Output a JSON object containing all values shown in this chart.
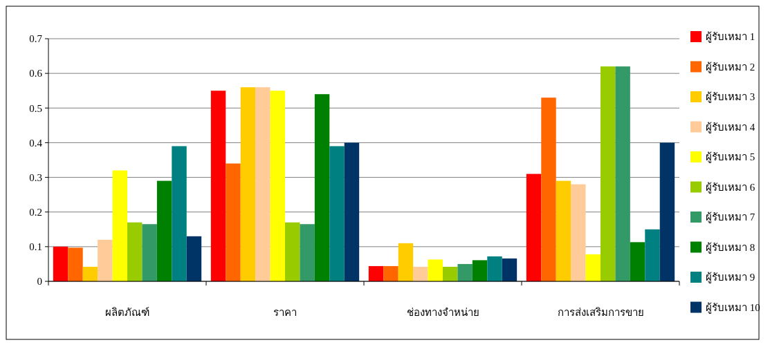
{
  "chart_data": {
    "type": "bar",
    "categories": [
      "ผลิตภัณฑ์",
      "ราคา",
      "ช่องทางจำหน่าย",
      "การส่งเสริมการขาย"
    ],
    "ylim": [
      0,
      0.7
    ],
    "yticks": [
      {
        "value": 0,
        "label": "0"
      },
      0.1,
      0.2,
      0.3,
      0.4,
      0.5,
      0.6,
      0.7
    ],
    "grid": "y",
    "legend": "right",
    "series": [
      {
        "name": "ผู้รับเหมา 1",
        "color": "#ff0000",
        "values": [
          0.1,
          0.55,
          0.044,
          0.31
        ]
      },
      {
        "name": "ผู้รับเหมา 2",
        "color": "#ff6600",
        "values": [
          0.097,
          0.34,
          0.044,
          0.53
        ]
      },
      {
        "name": "ผู้รับเหมา 3",
        "color": "#ffcc00",
        "values": [
          0.042,
          0.56,
          0.11,
          0.29
        ]
      },
      {
        "name": "ผู้รับเหมา 4",
        "color": "#ffcc99",
        "values": [
          0.12,
          0.56,
          0.042,
          0.28
        ]
      },
      {
        "name": "ผู้รับเหมา 5",
        "color": "#ffff00",
        "values": [
          0.32,
          0.55,
          0.063,
          0.078
        ]
      },
      {
        "name": "ผู้รับเหมา 6",
        "color": "#99cc00",
        "values": [
          0.17,
          0.17,
          0.042,
          0.62
        ]
      },
      {
        "name": "ผู้รับเหมา 7",
        "color": "#339966",
        "values": [
          0.165,
          0.165,
          0.05,
          0.62
        ]
      },
      {
        "name": "ผู้รับเหมา 8",
        "color": "#008000",
        "values": [
          0.29,
          0.54,
          0.061,
          0.113
        ]
      },
      {
        "name": "ผู้รับเหมา 9",
        "color": "#008080",
        "values": [
          0.39,
          0.39,
          0.072,
          0.15
        ]
      },
      {
        "name": "ผู้รับเหมา 10",
        "color": "#003366",
        "values": [
          0.13,
          0.4,
          0.066,
          0.4
        ]
      }
    ]
  }
}
